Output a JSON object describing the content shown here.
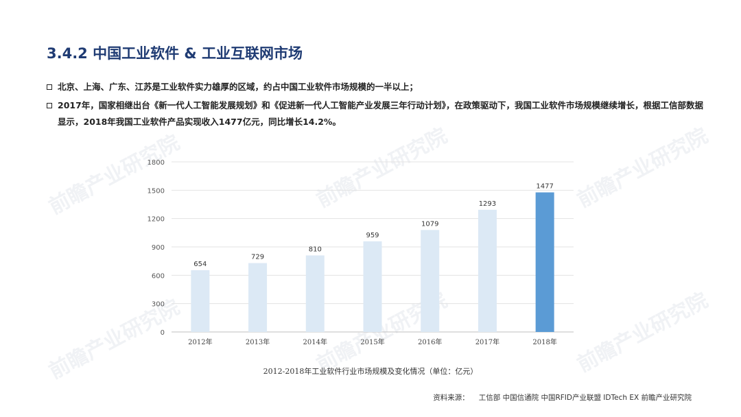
{
  "title": "3.4.2 中国工业软件 & 工业互联网市场",
  "bullets": [
    "北京、上海、广东、江苏是工业软件实力雄厚的区域，约占中国工业软件市场规模的一半以上；",
    "2017年，国家相继出台《新一代人工智能发展规划》和《促进新一代人工智能产业发展三年行动计划》，在政策驱动下，我国工业软件市场规模继续增长，根据工信部数据显示，2018年我国工业软件产品实现收入1477亿元，同比增长14.2%。"
  ],
  "watermark": "前瞻产业研究院",
  "chart_data": {
    "type": "bar",
    "categories": [
      "2012年",
      "2013年",
      "2014年",
      "2015年",
      "2016年",
      "2017年",
      "2018年"
    ],
    "values": [
      654,
      729,
      810,
      959,
      1079,
      1293,
      1477
    ],
    "ylim": [
      0,
      1800
    ],
    "yticks": [
      0,
      300,
      600,
      900,
      1200,
      1500,
      1800
    ],
    "grid": true,
    "colors": {
      "default": "#dce9f5",
      "highlight": "#5b9bd5"
    },
    "highlight_index": 6,
    "caption": "2012-2018年工业软件行业市场规模及变化情况（单位：亿元）"
  },
  "source": {
    "label": "资料来源：",
    "text": "工信部 中国信通院 中国RFID产业联盟 IDTech EX 前瞻产业研究院"
  }
}
